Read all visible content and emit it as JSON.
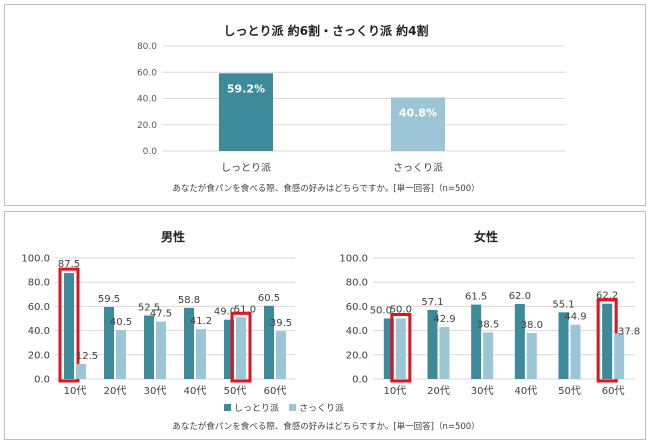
{
  "colors": {
    "shittori": "#3d8a9b",
    "sakkuri": "#9cc6d6",
    "highlight": "#e0141e",
    "grid": "#d9d9d9"
  },
  "chart_data": [
    {
      "type": "bar",
      "title": "しっとり派 約6割・さっくり派 約4割",
      "categories": [
        "しっとり派",
        "さっくり派"
      ],
      "values": [
        59.2,
        40.8
      ],
      "value_labels": [
        "59.2%",
        "40.8%"
      ],
      "ylim": [
        0,
        80
      ],
      "yticks": [
        "80.0",
        "60.0",
        "40.0",
        "20.0",
        "0.0"
      ],
      "note": "あなたが食パンを食べる際、食感の好みはどちらですか。[単一回答]（n=500）"
    },
    {
      "type": "bar",
      "title": "男性",
      "categories": [
        "10代",
        "20代",
        "30代",
        "40代",
        "50代",
        "60代"
      ],
      "series": [
        {
          "name": "しっとり派",
          "values": [
            87.5,
            59.5,
            52.5,
            58.8,
            49.0,
            60.5
          ]
        },
        {
          "name": "さっくり派",
          "values": [
            12.5,
            40.5,
            47.5,
            41.2,
            51.0,
            39.5
          ]
        }
      ],
      "value_labels": {
        "shittori": [
          "87.5",
          "59.5",
          "52.5",
          "58.8",
          "49.0",
          "60.5"
        ],
        "sakkuri": [
          "12.5",
          "40.5",
          "47.5",
          "41.2",
          "51.0",
          "39.5"
        ]
      },
      "highlighted": [
        "10代 しっとり派",
        "50代 さっくり派"
      ],
      "ylim": [
        0,
        100
      ],
      "yticks": [
        "100.0",
        "80.0",
        "60.0",
        "40.0",
        "20.0",
        "0.0"
      ]
    },
    {
      "type": "bar",
      "title": "女性",
      "categories": [
        "10代",
        "20代",
        "30代",
        "40代",
        "50代",
        "60代"
      ],
      "series": [
        {
          "name": "しっとり派",
          "values": [
            50.0,
            57.1,
            61.5,
            62.0,
            55.1,
            62.2
          ]
        },
        {
          "name": "さっくり派",
          "values": [
            50.0,
            42.9,
            38.5,
            38.0,
            44.9,
            37.8
          ]
        }
      ],
      "value_labels": {
        "shittori": [
          "50.0",
          "57.1",
          "61.5",
          "62.0",
          "55.1",
          "62.2"
        ],
        "sakkuri": [
          "50.0",
          "42.9",
          "38.5",
          "38.0",
          "44.9",
          "37.8"
        ]
      },
      "highlighted": [
        "10代 さっくり派",
        "60代 しっとり派"
      ],
      "ylim": [
        0,
        100
      ],
      "yticks": [
        "100.0",
        "80.0",
        "60.0",
        "40.0",
        "20.0",
        "0.0"
      ]
    }
  ],
  "legend": {
    "shittori": "しっとり派",
    "sakkuri": "さっくり派"
  },
  "bottom_note": "あなたが食パンを食べる際、食感の好みはどちらですか。[単一回答]（n=500）"
}
